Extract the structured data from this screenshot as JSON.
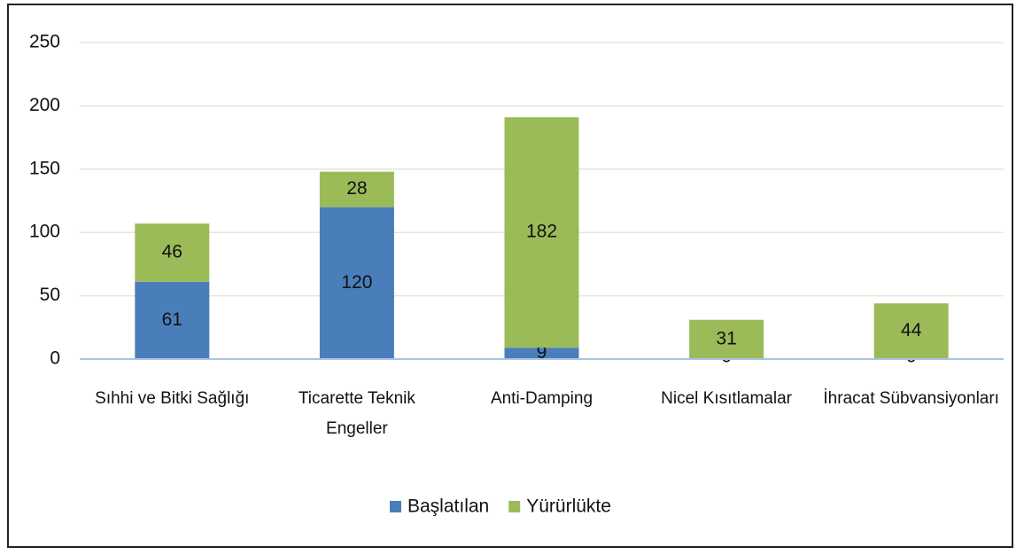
{
  "chart_data": {
    "type": "stacked_bar",
    "categories": [
      "Sıhhi ve Bitki Sağlığı",
      "Ticarette Teknik Engeller",
      "Anti-Damping",
      "Nicel Kısıtlamalar",
      "İhracat Sübvansiyonları"
    ],
    "series": [
      {
        "name": "Başlatılan",
        "color": "#4a7ebb",
        "values": [
          61,
          120,
          9,
          0,
          0
        ]
      },
      {
        "name": "Yürürlükte",
        "color": "#9bbb59",
        "values": [
          46,
          28,
          182,
          31,
          44
        ]
      }
    ],
    "ylim": [
      0,
      250
    ],
    "yticks": [
      0,
      50,
      100,
      150,
      200,
      250
    ],
    "grid": true,
    "legend": "bottom"
  }
}
